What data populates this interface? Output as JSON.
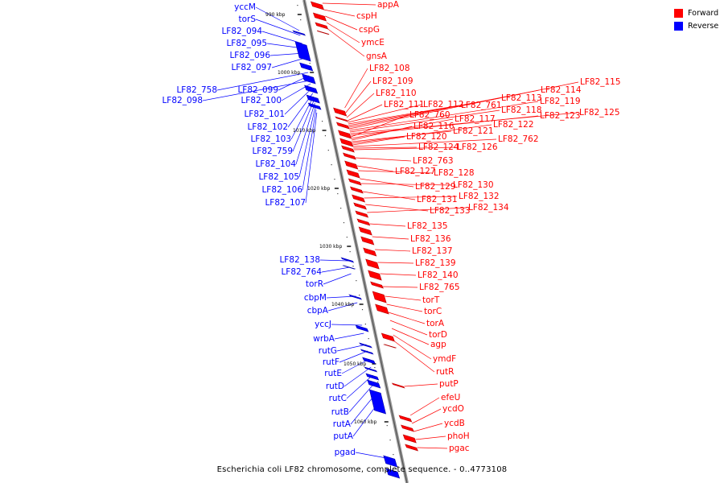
{
  "legend": {
    "forward": "Forward",
    "reverse": "Reverse",
    "forward_color": "#ff0000",
    "reverse_color": "#0000ff"
  },
  "caption": "Escherichia coli LF82 chromosome, complete sequence. - 0..4773108",
  "scale_ticks": [
    "990 kbp",
    "1000 kbp",
    "1010 kbp",
    "1020 kbp",
    "1030 kbp",
    "1040 kbp",
    "1050 kbp",
    "1060 kbp"
  ],
  "reverse_labels": [
    "yccM",
    "torS",
    "LF82_094",
    "LF82_095",
    "LF82_096",
    "LF82_097",
    "LF82_758",
    "LF82_099",
    "LF82_098",
    "LF82_100",
    "LF82_101",
    "LF82_102",
    "LF82_103",
    "LF82_759",
    "LF82_104",
    "LF82_105",
    "LF82_106",
    "LF82_107",
    "LF82_138",
    "LF82_764",
    "torR",
    "cbpM",
    "cbpA",
    "yccJ",
    "wrbA",
    "rutG",
    "rutF",
    "rutE",
    "rutD",
    "rutC",
    "rutB",
    "rutA",
    "putA",
    "pgad"
  ],
  "forward_labels": [
    "appA",
    "cspH",
    "cspG",
    "ymcE",
    "gnsA",
    "LF82_108",
    "LF82_109",
    "LF82_110",
    "LF82_111",
    "LF82_112",
    "LF82_761",
    "LF82_113",
    "LF82_114",
    "LF82_115",
    "LF82_119",
    "LF82_118",
    "LF82_125",
    "LF82_123",
    "LF82_760",
    "LF82_117",
    "LF82_116",
    "LF82_121",
    "LF82_122",
    "LF82_120",
    "LF82_762",
    "LF82_124",
    "LF82_126",
    "LF82_763",
    "LF82_127",
    "LF82_128",
    "LF82_129",
    "LF82_130",
    "LF82_131",
    "LF82_132",
    "LF82_133",
    "LF82_134",
    "LF82_135",
    "LF82_136",
    "LF82_137",
    "LF82_139",
    "LF82_140",
    "LF82_765",
    "torT",
    "torC",
    "torA",
    "torD",
    "agp",
    "ymdF",
    "rutR",
    "putP",
    "efeU",
    "ycdO",
    "ycdB",
    "phoH",
    "pgac"
  ]
}
